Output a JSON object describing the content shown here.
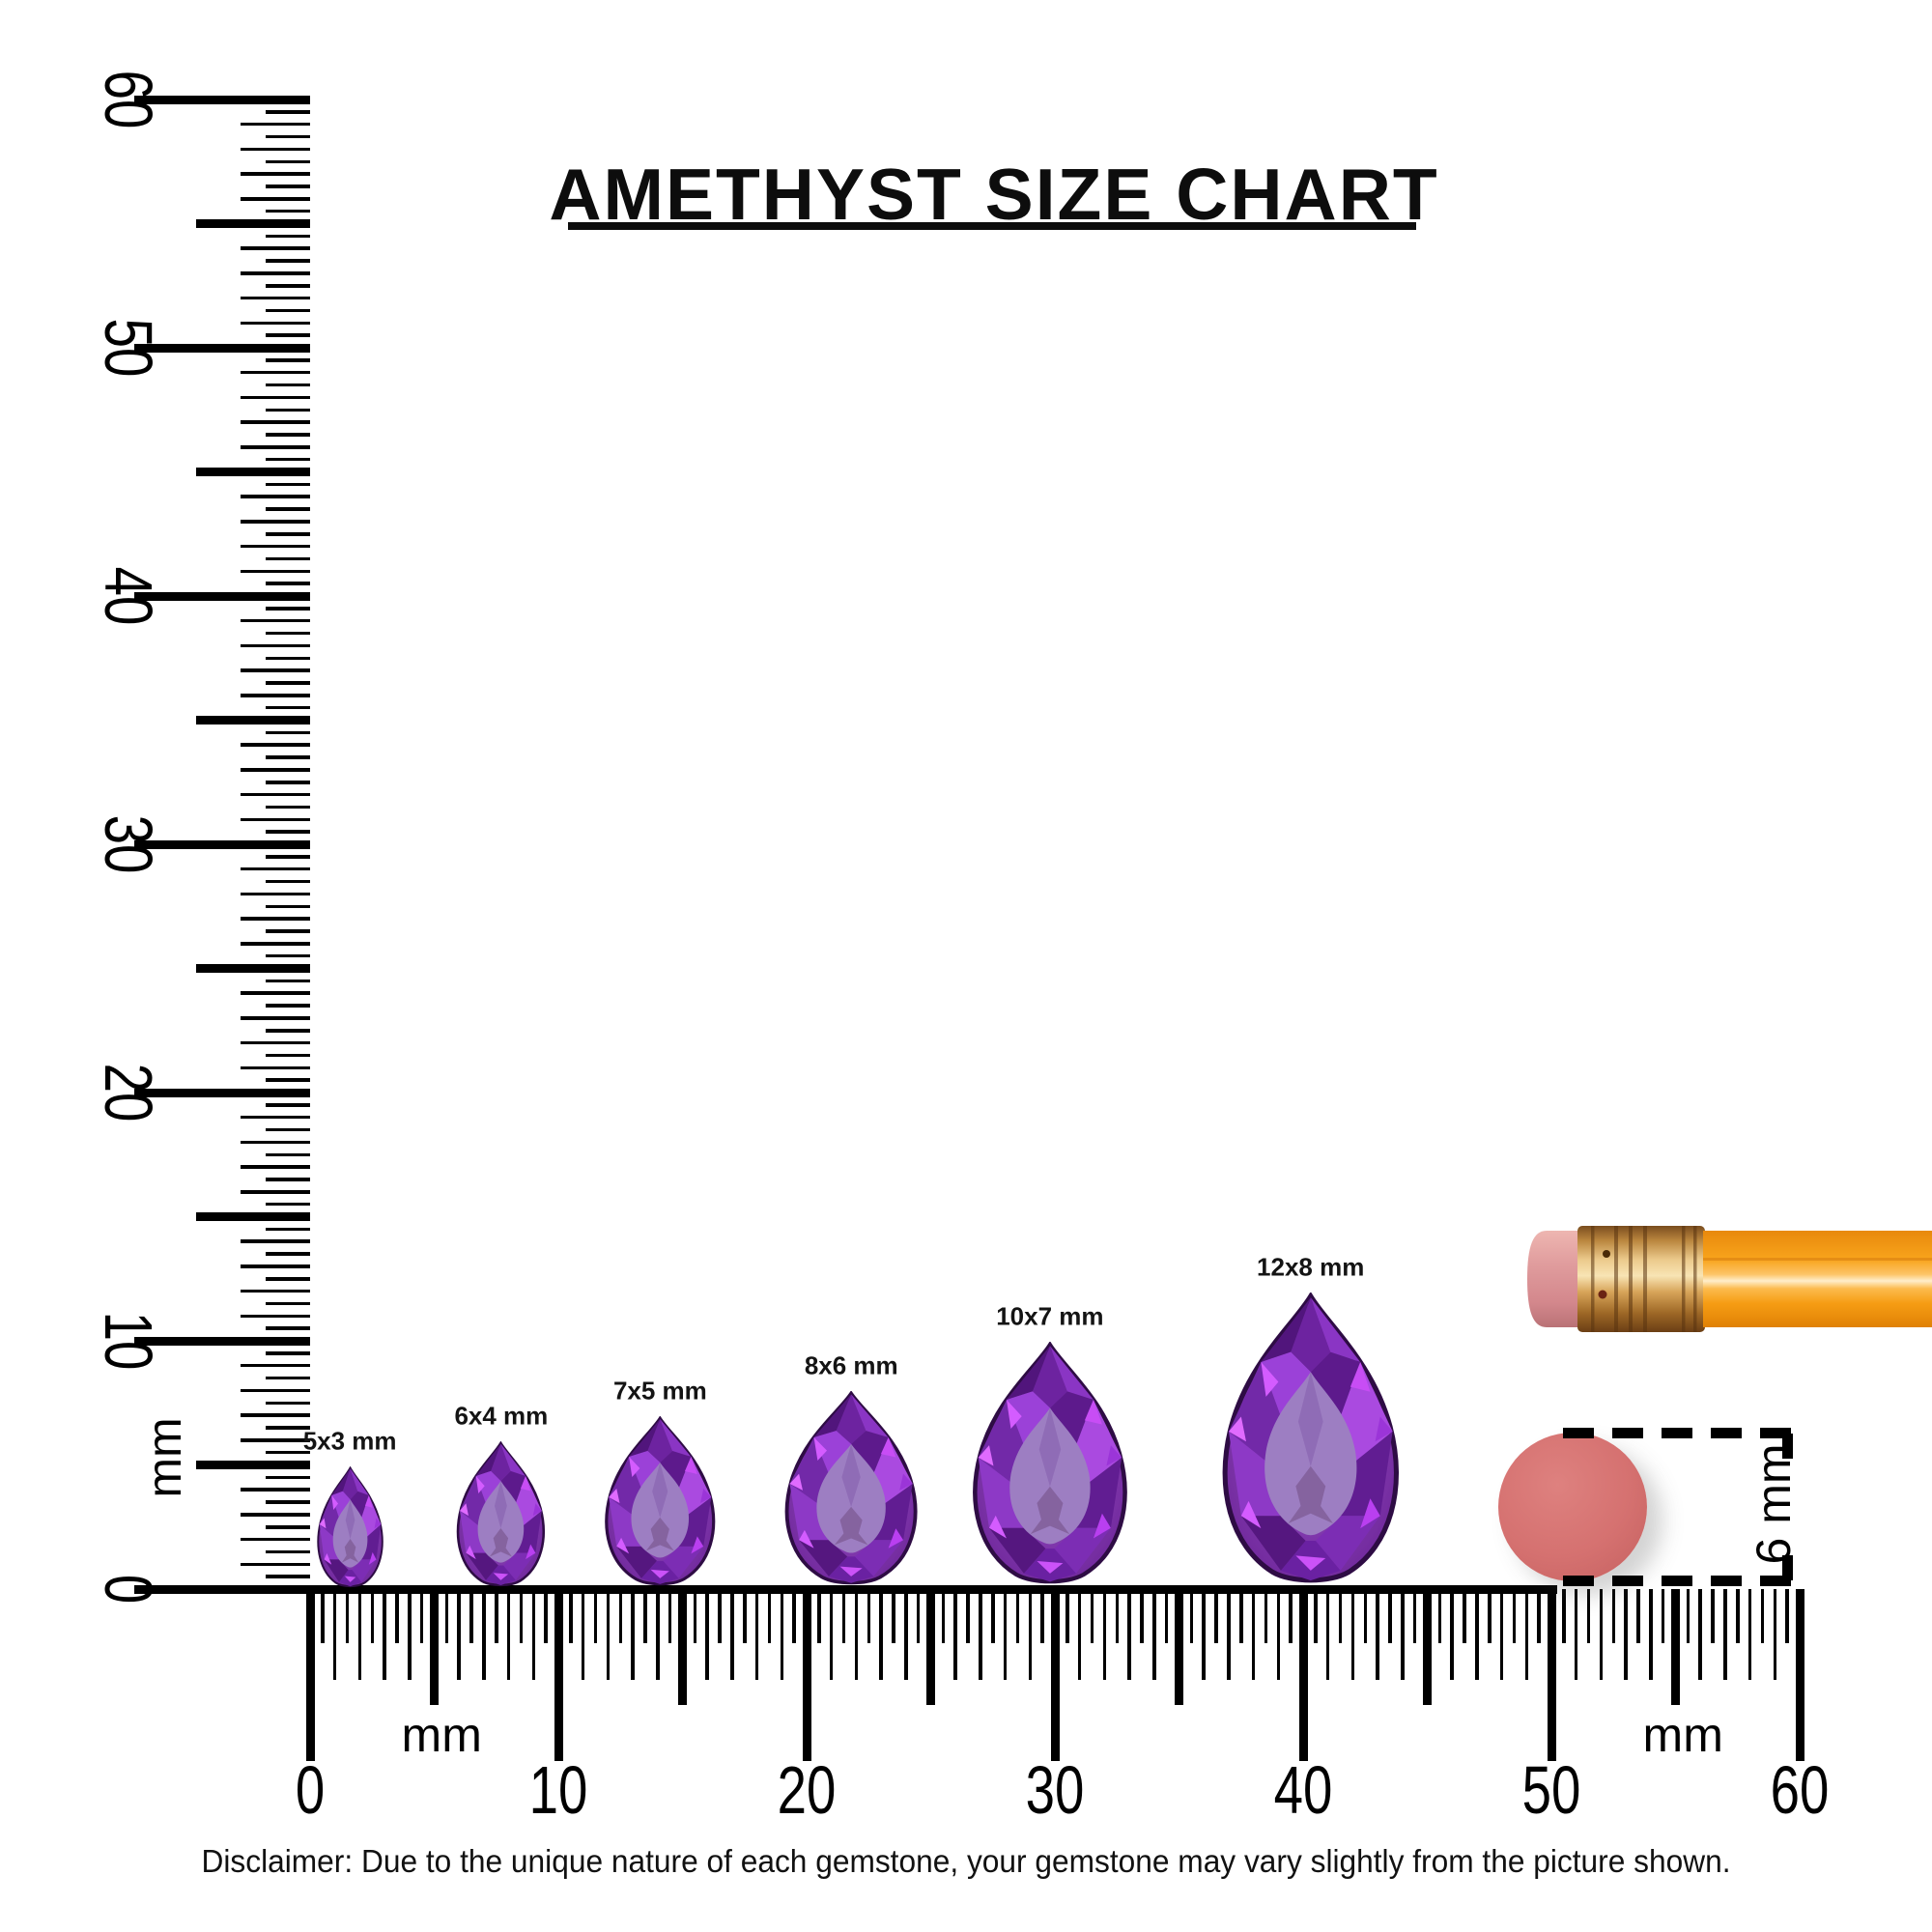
{
  "title": {
    "text": "AMETHYST SIZE CHART"
  },
  "gems": [
    {
      "label": "5x3 mm",
      "length_mm": 5,
      "width_mm": 3,
      "center_mm": 1.6
    },
    {
      "label": "6x4 mm",
      "length_mm": 6,
      "width_mm": 4,
      "center_mm": 7.7
    },
    {
      "label": "7x5 mm",
      "length_mm": 7,
      "width_mm": 5,
      "center_mm": 14.1
    },
    {
      "label": "8x6 mm",
      "length_mm": 8,
      "width_mm": 6,
      "center_mm": 21.8
    },
    {
      "label": "10x7 mm",
      "length_mm": 10,
      "width_mm": 7,
      "center_mm": 29.8
    },
    {
      "label": "12x8 mm",
      "length_mm": 12,
      "width_mm": 8,
      "center_mm": 40.3
    }
  ],
  "vertical_ruler": {
    "unit": "mm",
    "range_mm": [
      0,
      60
    ],
    "major_step_mm": 10,
    "minor_step_mm": 0.5,
    "labels": [
      "0",
      "10",
      "20",
      "30",
      "40",
      "50",
      "60"
    ]
  },
  "horizontal_ruler": {
    "unit": "mm",
    "range_mm": [
      0,
      60
    ],
    "major_step_mm": 10,
    "minor_step_mm": 0.5,
    "labels": [
      "0",
      "10",
      "20",
      "30",
      "40",
      "50",
      "60"
    ],
    "unit_label_positions_mm": [
      5.3,
      55.3
    ]
  },
  "reference": {
    "eraser_circle": {
      "label": "6 mm",
      "diameter_mm": 6,
      "center_mm": 50.9,
      "color": "#d57170"
    },
    "pencil": {
      "body_color": "#f9a41d",
      "ferrule_color": "#c9944b",
      "eraser_color": "#dc9a9b"
    }
  },
  "disclaimer": {
    "text": "Disclaimer: Due to the unique nature of each gemstone, your gemstone may vary slightly from the picture shown."
  },
  "colors": {
    "background": "#ffffff",
    "ink": "#000000",
    "amethyst_base": "#7c2fae",
    "amethyst_deep": "#4a1170",
    "amethyst_bright": "#a94fe0",
    "amethyst_flash": "#d45cff",
    "amethyst_table": "#9d7ec2",
    "amethyst_outline": "#2e0c44"
  },
  "chart_data": {
    "type": "table",
    "title": "AMETHYST SIZE CHART",
    "unit": "mm",
    "shape": "pear",
    "categories": [
      "5x3 mm",
      "6x4 mm",
      "7x5 mm",
      "8x6 mm",
      "10x7 mm",
      "12x8 mm"
    ],
    "series": [
      {
        "name": "length_mm",
        "values": [
          5,
          6,
          7,
          8,
          10,
          12
        ]
      },
      {
        "name": "width_mm",
        "values": [
          3,
          4,
          5,
          6,
          7,
          8
        ]
      }
    ],
    "reference_scale": {
      "ruler_range_mm": [
        0,
        60
      ],
      "eraser_diameter_mm": 6
    }
  }
}
